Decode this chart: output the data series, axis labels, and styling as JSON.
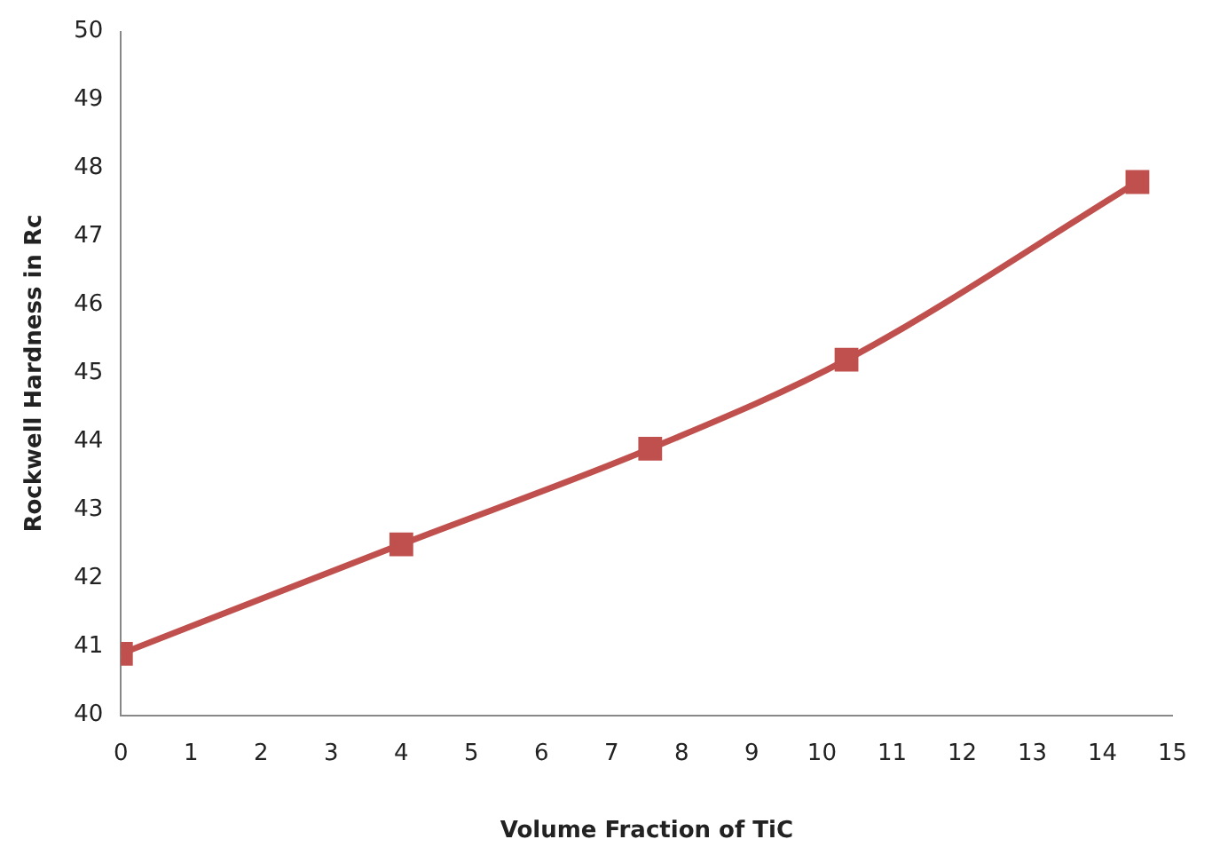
{
  "chart_data": {
    "type": "line",
    "xlabel": "Volume Fraction of TiC",
    "ylabel": "Rockwell Hardness in Rc",
    "x": [
      0,
      4,
      7.55,
      10.35,
      14.5
    ],
    "series": [
      {
        "color": "#c0504d",
        "values": [
          40.9,
          42.5,
          43.9,
          45.2,
          47.8
        ]
      }
    ],
    "xlim": [
      0,
      15
    ],
    "xticks": [
      0,
      1,
      2,
      3,
      4,
      5,
      6,
      7,
      8,
      9,
      10,
      11,
      12,
      13,
      14,
      15
    ],
    "ylim": [
      40,
      50
    ],
    "yticks": [
      40,
      41,
      42,
      43,
      44,
      45,
      46,
      47,
      48,
      49,
      50
    ],
    "grid": false,
    "legend": false,
    "marker": "square",
    "line_style": "solid"
  }
}
